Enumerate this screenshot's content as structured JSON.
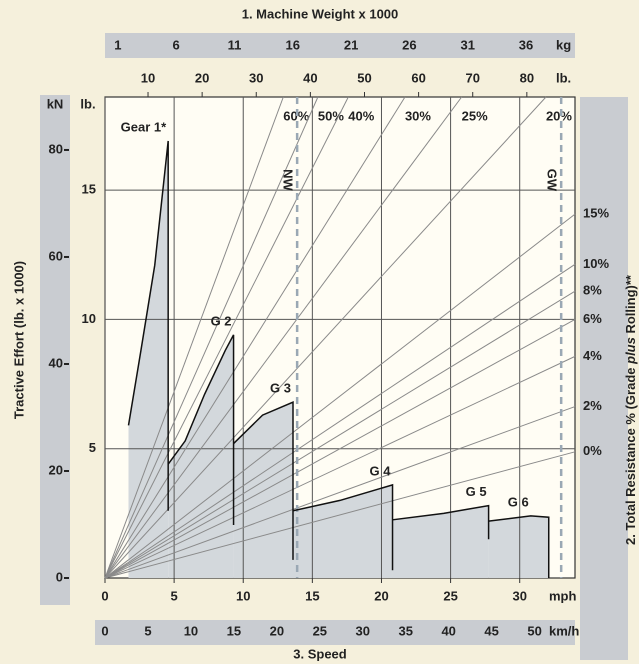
{
  "chart_data": {
    "type": "line",
    "weight_label": "1. Machine Weight x 1000",
    "x_label": "3. Speed",
    "y_label": "Tractive Effort (lb. x 1000)",
    "y2_label_parts": [
      "2. Total Resistance % (Grade ",
      "plus",
      " Rolling)**"
    ],
    "x_unit": "mph",
    "xlim": [
      0,
      34
    ],
    "xticks": [
      0,
      5,
      10,
      15,
      20,
      25,
      30
    ],
    "y_unit": "lb.",
    "ylim": [
      0,
      18.6
    ],
    "yticks": [
      5,
      10,
      15
    ],
    "grid": true,
    "kmh": {
      "unit": "km/h",
      "lim": [
        0,
        54.7
      ],
      "ticks": [
        0,
        5,
        10,
        15,
        20,
        25,
        30,
        35,
        40,
        45,
        50
      ]
    },
    "kg": {
      "unit": "kg",
      "lim": [
        -0.1,
        40.2
      ],
      "ticks": [
        1,
        6,
        11,
        16,
        21,
        26,
        31,
        36
      ]
    },
    "lb_top": {
      "unit": "lb.",
      "lim": [
        2.05,
        88.9
      ],
      "ticks": [
        10,
        20,
        30,
        40,
        50,
        60,
        70,
        80
      ]
    },
    "kN": {
      "unit": "kN",
      "lim": [
        0,
        89.9
      ],
      "ticks": [
        0,
        20,
        40,
        60,
        80
      ]
    },
    "line_color": "#111111",
    "fill_color": "#d3d8dc",
    "resistance_color": "#8a8a8a",
    "marker_color": "#9aa8b4",
    "series": [
      {
        "name": "Gear 1*",
        "x": [
          1.7,
          2.6,
          3.6,
          4.57,
          4.57
        ],
        "values": [
          5.9,
          8.8,
          12.1,
          16.9,
          2.6
        ]
      },
      {
        "name": "G 2",
        "x": [
          4.57,
          5.8,
          7.2,
          8.7,
          9.3,
          9.3
        ],
        "values": [
          4.4,
          5.3,
          7.1,
          8.8,
          9.4,
          2.05
        ]
      },
      {
        "name": "G 3",
        "x": [
          9.3,
          11.4,
          13.6,
          13.6
        ],
        "values": [
          5.2,
          6.3,
          6.8,
          0.7
        ]
      },
      {
        "name": "G 4",
        "x": [
          13.6,
          17.0,
          20.8,
          20.8
        ],
        "values": [
          2.6,
          3.0,
          3.6,
          0.3
        ]
      },
      {
        "name": "G 5",
        "x": [
          20.8,
          24.5,
          27.75,
          27.75
        ],
        "values": [
          2.25,
          2.5,
          2.8,
          1.5
        ]
      },
      {
        "name": "G 6",
        "x": [
          27.75,
          30.8,
          32.1,
          32.1
        ],
        "values": [
          2.2,
          2.4,
          2.35,
          0
        ]
      }
    ],
    "resistance_lines": [
      {
        "label": "60%",
        "x": 12.9,
        "y": 18.6
      },
      {
        "label": "50%",
        "x": 15.4,
        "y": 18.6
      },
      {
        "label": "40%",
        "x": 17.6,
        "y": 18.6
      },
      {
        "label": "30%",
        "x": 21.7,
        "y": 18.6
      },
      {
        "label": "25%",
        "x": 25.8,
        "y": 18.6
      },
      {
        "label": "20%",
        "x": 31.9,
        "y": 18.6
      },
      {
        "label": "15%",
        "x": 34,
        "y": 14.07
      },
      {
        "label": "10%",
        "x": 34,
        "y": 12.13
      },
      {
        "label": "8%",
        "x": 34,
        "y": 11.09
      },
      {
        "label": "6%",
        "x": 34,
        "y": 10.0
      },
      {
        "label": "4%",
        "x": 34,
        "y": 8.57
      },
      {
        "label": "2%",
        "x": 34,
        "y": 6.63
      },
      {
        "label": "0%",
        "x": 34,
        "y": 4.88
      }
    ],
    "markers": [
      {
        "label": "NW",
        "x": 13.9
      },
      {
        "label": "GW",
        "x": 33.0
      }
    ]
  }
}
